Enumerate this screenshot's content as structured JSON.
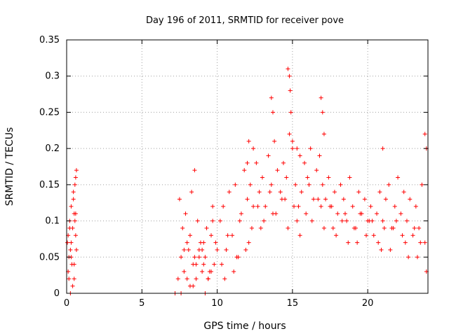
{
  "chart_data": {
    "type": "scatter",
    "title": "Day 196 of 2011, SRMTID for receiver pove",
    "xlabel": "GPS time / hours",
    "ylabel": "SRMTID / TECUs",
    "xlim": [
      0,
      24
    ],
    "ylim": [
      0,
      0.35
    ],
    "xticks": [
      0,
      5,
      10,
      15,
      20
    ],
    "xtick_labels": [
      "0",
      "5",
      "10",
      "15",
      "20"
    ],
    "yticks": [
      0,
      0.05,
      0.1,
      0.15,
      0.2,
      0.25,
      0.3,
      0.35
    ],
    "ytick_labels": [
      "0",
      "0.05",
      "0.1",
      "0.15",
      "0.2",
      "0.25",
      "0.3",
      "0.35"
    ],
    "grid": true,
    "marker": "+",
    "color": "#ff0000",
    "series": [
      {
        "name": "SRMTID",
        "x": [
          0.05,
          0.1,
          0.15,
          0.2,
          0.25,
          0.3,
          0.35,
          0.4,
          0.45,
          0.5,
          0.55,
          0.6,
          0.65,
          0.1,
          0.2,
          0.3,
          0.45,
          0.55,
          0.6,
          0.65,
          0.15,
          0.3,
          0.5,
          0.6,
          0.25,
          0.4,
          0.5,
          7.2,
          7.4,
          7.6,
          7.8,
          8.0,
          8.2,
          8.4,
          8.6,
          8.8,
          9.0,
          9.2,
          9.4,
          9.6,
          9.8,
          10.0,
          7.5,
          7.7,
          7.9,
          8.1,
          8.3,
          8.5,
          8.7,
          8.9,
          9.1,
          9.3,
          9.5,
          9.7,
          9.9,
          7.6,
          8.0,
          8.4,
          8.8,
          9.2,
          9.6,
          8.2,
          8.6,
          9.0,
          9.4,
          7.8,
          8.5,
          9.1,
          9.7,
          10.2,
          10.4,
          10.6,
          10.8,
          11.0,
          11.2,
          11.4,
          11.6,
          11.8,
          12.0,
          12.2,
          12.4,
          12.6,
          12.8,
          13.0,
          13.2,
          13.4,
          13.6,
          13.8,
          14.0,
          14.2,
          14.4,
          14.6,
          14.8,
          15.0,
          15.2,
          15.4,
          15.6,
          15.8,
          16.0,
          16.2,
          16.4,
          16.6,
          16.8,
          17.0,
          17.2,
          17.4,
          17.6,
          17.8,
          18.0,
          18.2,
          18.4,
          18.6,
          18.8,
          19.0,
          19.2,
          19.4,
          19.6,
          19.8,
          20.0,
          20.2,
          20.4,
          20.6,
          20.8,
          21.0,
          21.2,
          21.4,
          21.6,
          21.8,
          22.0,
          22.2,
          22.4,
          22.6,
          22.8,
          23.0,
          23.2,
          23.4,
          23.6,
          23.8,
          10.3,
          10.7,
          11.1,
          11.5,
          11.9,
          12.3,
          12.7,
          13.1,
          13.5,
          13.9,
          14.3,
          14.7,
          15.1,
          15.5,
          15.9,
          16.3,
          16.7,
          17.1,
          17.5,
          17.9,
          18.3,
          18.7,
          19.1,
          19.5,
          19.9,
          20.3,
          20.7,
          21.1,
          21.5,
          21.9,
          22.3,
          22.7,
          23.1,
          23.5,
          23.9,
          10.5,
          11.3,
          12.1,
          12.9,
          13.7,
          14.5,
          15.3,
          16.1,
          16.9,
          17.7,
          18.5,
          19.3,
          20.1,
          20.9,
          21.7,
          22.5,
          23.3,
          13.6,
          13.7,
          14.7,
          14.8,
          14.85,
          14.9,
          15.0,
          16.9,
          17.0,
          17.1,
          12.0,
          12.1,
          12.4,
          15.3,
          15.5,
          21.0,
          23.8,
          23.9
        ],
        "y": [
          0.07,
          0.08,
          0.05,
          0.1,
          0.06,
          0.12,
          0.04,
          0.09,
          0.14,
          0.02,
          0.15,
          0.11,
          0.17,
          0.03,
          0.09,
          0.07,
          0.13,
          0.1,
          0.16,
          0.06,
          0.02,
          0.05,
          0.11,
          0.08,
          0.0,
          0.01,
          0.04,
          0.0,
          0.02,
          0.05,
          0.03,
          0.07,
          0.01,
          0.04,
          0.02,
          0.06,
          0.03,
          0.05,
          0.02,
          0.08,
          0.04,
          0.06,
          0.13,
          0.09,
          0.11,
          0.06,
          0.14,
          0.05,
          0.1,
          0.07,
          0.04,
          0.09,
          0.03,
          0.12,
          0.07,
          0.0,
          0.02,
          0.01,
          0.05,
          0.0,
          0.03,
          0.08,
          0.04,
          0.06,
          0.02,
          0.06,
          0.17,
          0.07,
          0.1,
          0.1,
          0.12,
          0.06,
          0.14,
          0.08,
          0.15,
          0.05,
          0.11,
          0.17,
          0.13,
          0.15,
          0.12,
          0.18,
          0.14,
          0.16,
          0.12,
          0.19,
          0.15,
          0.21,
          0.17,
          0.14,
          0.18,
          0.16,
          0.22,
          0.2,
          0.15,
          0.12,
          0.14,
          0.18,
          0.16,
          0.2,
          0.13,
          0.17,
          0.19,
          0.15,
          0.13,
          0.16,
          0.12,
          0.14,
          0.11,
          0.15,
          0.13,
          0.1,
          0.16,
          0.12,
          0.09,
          0.14,
          0.11,
          0.13,
          0.1,
          0.12,
          0.08,
          0.11,
          0.14,
          0.1,
          0.13,
          0.15,
          0.09,
          0.12,
          0.16,
          0.11,
          0.14,
          0.1,
          0.13,
          0.08,
          0.12,
          0.09,
          0.15,
          0.07,
          0.04,
          0.08,
          0.03,
          0.1,
          0.06,
          0.09,
          0.12,
          0.1,
          0.14,
          0.11,
          0.13,
          0.09,
          0.12,
          0.08,
          0.11,
          0.1,
          0.13,
          0.09,
          0.12,
          0.08,
          0.1,
          0.07,
          0.09,
          0.11,
          0.08,
          0.1,
          0.07,
          0.09,
          0.06,
          0.1,
          0.08,
          0.05,
          0.09,
          0.07,
          0.03,
          0.02,
          0.05,
          0.07,
          0.09,
          0.11,
          0.13,
          0.1,
          0.15,
          0.12,
          0.09,
          0.11,
          0.07,
          0.1,
          0.06,
          0.09,
          0.07,
          0.05,
          0.27,
          0.25,
          0.31,
          0.3,
          0.28,
          0.25,
          0.21,
          0.27,
          0.25,
          0.22,
          0.18,
          0.21,
          0.2,
          0.2,
          0.19,
          0.2,
          0.22,
          0.2
        ]
      }
    ]
  }
}
